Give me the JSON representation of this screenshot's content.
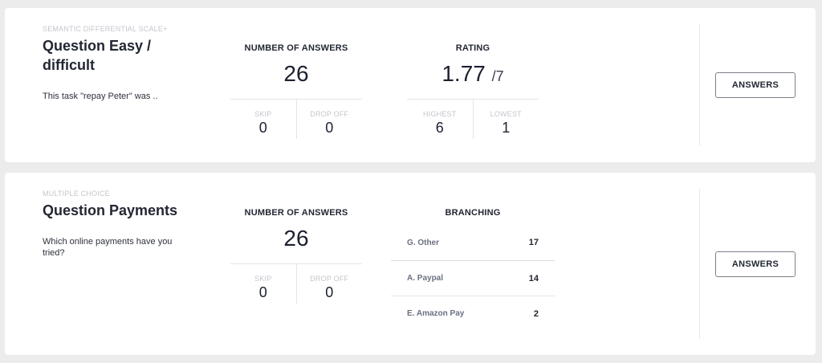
{
  "cards": [
    {
      "type_label": "SEMANTIC DIFFERENTIAL SCALE+",
      "title": "Question Easy / difficult",
      "description": "This task \"repay Peter\" was ..",
      "answers_metric": {
        "title": "NUMBER OF ANSWERS",
        "value": "26",
        "sub": [
          {
            "label": "SKIP",
            "value": "0"
          },
          {
            "label": "DROP OFF",
            "value": "0"
          }
        ]
      },
      "rating_metric": {
        "title": "RATING",
        "value": "1.77",
        "unit": "/7",
        "sub": [
          {
            "label": "HIGHEST",
            "value": "6"
          },
          {
            "label": "LOWEST",
            "value": "1"
          }
        ]
      },
      "button_label": "ANSWERS"
    },
    {
      "type_label": "MULTIPLE CHOICE",
      "title": "Question Payments",
      "description": "Which online payments have you tried?",
      "answers_metric": {
        "title": "NUMBER OF ANSWERS",
        "value": "26",
        "sub": [
          {
            "label": "SKIP",
            "value": "0"
          },
          {
            "label": "DROP OFF",
            "value": "0"
          }
        ]
      },
      "branching": {
        "title": "BRANCHING",
        "items": [
          {
            "label": "G. Other",
            "count": "17"
          },
          {
            "label": "A. Paypal",
            "count": "14"
          },
          {
            "label": "E. Amazon Pay",
            "count": "2"
          }
        ]
      },
      "button_label": "ANSWERS"
    }
  ]
}
